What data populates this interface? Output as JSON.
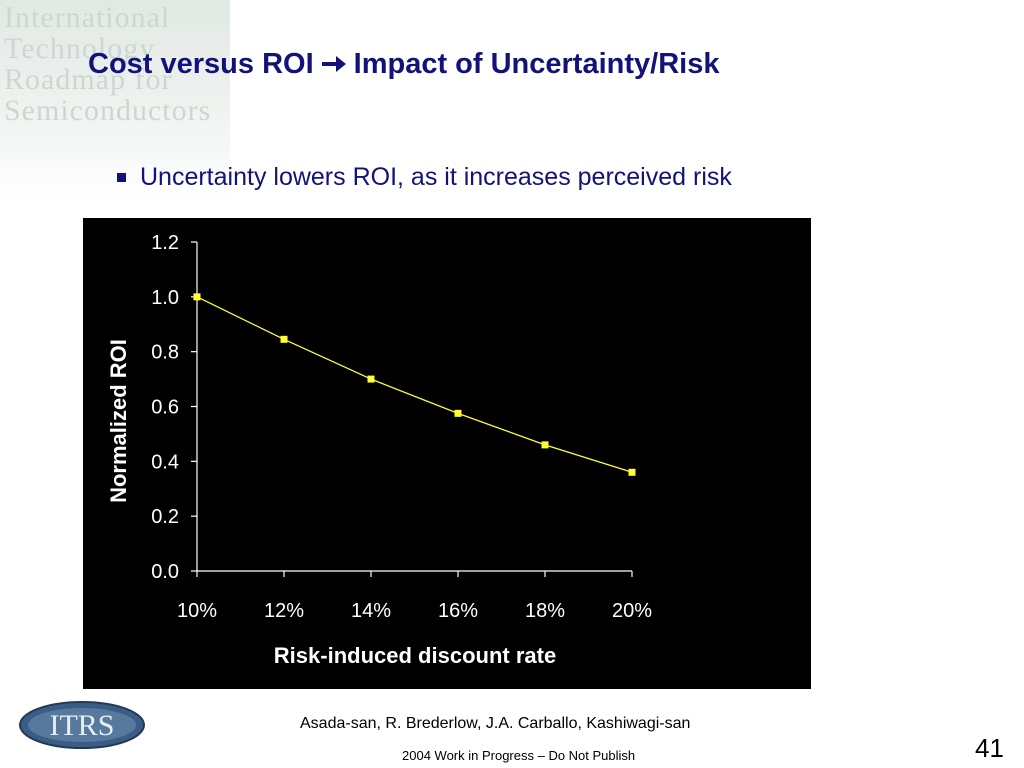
{
  "slide": {
    "title_part1": "Cost versus ROI",
    "title_part2": "Impact of Uncertainty/Risk",
    "bullet": "Uncertainty lowers ROI, as it increases perceived risk",
    "citation": "Asada-san, R. Brederlow, J.A. Carballo, Kashiwagi-san",
    "footer_note": "2004 Work in Progress – Do Not Publish",
    "page_number": "41",
    "logo_text": "ITRS",
    "watermark_text": "International Technology Roadmap for Semiconductors"
  },
  "colors": {
    "title": "#12127a",
    "chart_background": "#000000",
    "series_line": "#ffff33",
    "axis_text": "#ffffff"
  },
  "chart_data": {
    "type": "line",
    "title": "",
    "xlabel": "Risk-induced discount rate",
    "ylabel": "Normalized ROI",
    "categories": [
      "10%",
      "12%",
      "14%",
      "16%",
      "18%",
      "20%"
    ],
    "series": [
      {
        "values": [
          1.0,
          0.845,
          0.7,
          0.575,
          0.46,
          0.36
        ]
      }
    ],
    "ylim": [
      0,
      1.2
    ],
    "yticks": [
      "0.0",
      "0.2",
      "0.4",
      "0.6",
      "0.8",
      "1.0",
      "1.2"
    ],
    "grid": false,
    "legend": "none"
  }
}
